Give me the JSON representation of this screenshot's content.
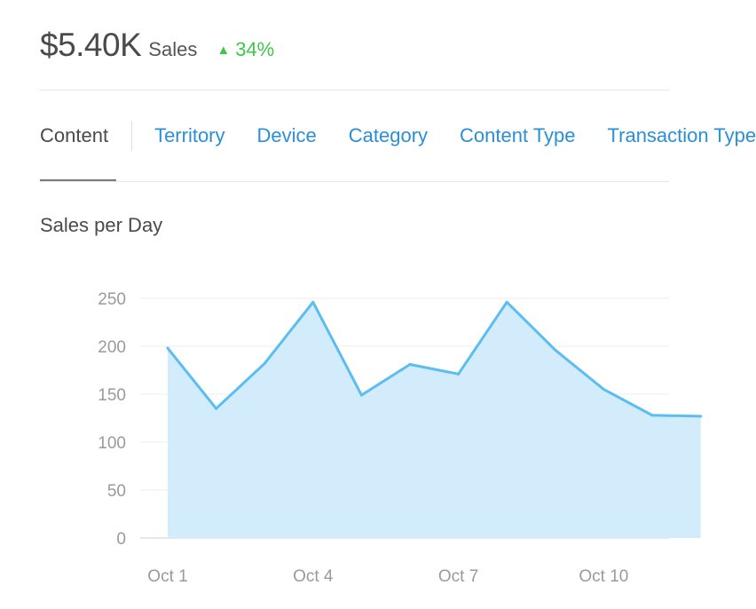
{
  "summary": {
    "amount": "$5.40K",
    "amount_label": "Sales",
    "change": "34%",
    "change_direction": "up",
    "change_color": "#3ec84a"
  },
  "tabs": [
    {
      "label": "Content",
      "active": true
    },
    {
      "label": "Territory",
      "active": false
    },
    {
      "label": "Device",
      "active": false
    },
    {
      "label": "Category",
      "active": false
    },
    {
      "label": "Content Type",
      "active": false
    },
    {
      "label": "Transaction Type",
      "active": false
    }
  ],
  "colors": {
    "accent": "#2b8fd6",
    "line": "#5bbdf0",
    "area": "#d3ecfb"
  },
  "chart_data": {
    "type": "area",
    "title": "Sales per Day",
    "xlabel": "",
    "ylabel": "",
    "x": [
      "Oct 1",
      "Oct 2",
      "Oct 3",
      "Oct 4",
      "Oct 5",
      "Oct 6",
      "Oct 7",
      "Oct 8",
      "Oct 9",
      "Oct 10",
      "Oct 11",
      "Oct 12"
    ],
    "x_tick_labels": [
      "Oct 1",
      "Oct 4",
      "Oct 7",
      "Oct 10"
    ],
    "series": [
      {
        "values": [
          198,
          135,
          182,
          246,
          149,
          181,
          171,
          246,
          196,
          155,
          128,
          127
        ]
      }
    ],
    "y_ticks": [
      "0",
      "50",
      "100",
      "150",
      "200",
      "250"
    ],
    "ylim": [
      0,
      250
    ],
    "grid": true
  }
}
